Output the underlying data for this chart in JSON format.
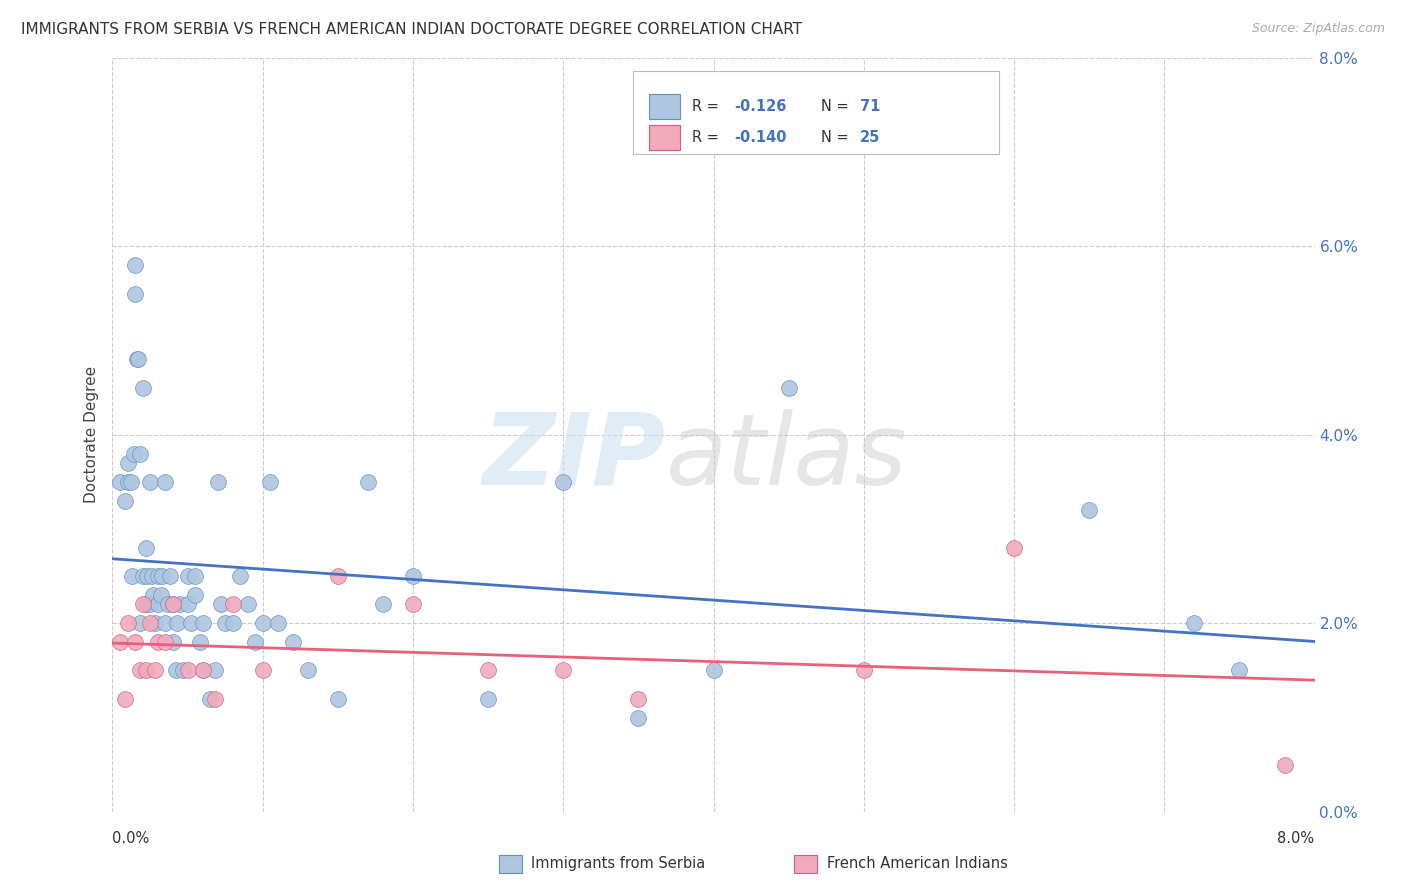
{
  "title": "IMMIGRANTS FROM SERBIA VS FRENCH AMERICAN INDIAN DOCTORATE DEGREE CORRELATION CHART",
  "source": "Source: ZipAtlas.com",
  "ylabel": "Doctorate Degree",
  "ytick_vals": [
    0.0,
    2.0,
    4.0,
    6.0,
    8.0
  ],
  "ytick_labels": [
    "0.0%",
    "2.0%",
    "4.0%",
    "6.0%",
    "8.0%"
  ],
  "xlim": [
    0.0,
    8.0
  ],
  "ylim": [
    0.0,
    8.0
  ],
  "blue_R": -0.126,
  "blue_N": 71,
  "pink_R": -0.14,
  "pink_N": 25,
  "blue_scatter_color": "#aec6e0",
  "blue_edge_color": "#6090c0",
  "pink_scatter_color": "#f0aabb",
  "pink_edge_color": "#d06080",
  "blue_line_color": "#4472c4",
  "pink_line_color": "#e8607a",
  "grid_color": "#cccccc",
  "legend_label_blue": "Immigrants from Serbia",
  "legend_label_pink": "French American Indians",
  "blue_x": [
    0.05,
    0.08,
    0.1,
    0.1,
    0.12,
    0.13,
    0.14,
    0.15,
    0.15,
    0.16,
    0.17,
    0.18,
    0.18,
    0.2,
    0.2,
    0.22,
    0.22,
    0.23,
    0.25,
    0.25,
    0.26,
    0.27,
    0.28,
    0.3,
    0.3,
    0.32,
    0.33,
    0.35,
    0.35,
    0.37,
    0.38,
    0.4,
    0.4,
    0.42,
    0.43,
    0.45,
    0.47,
    0.5,
    0.5,
    0.52,
    0.55,
    0.55,
    0.58,
    0.6,
    0.6,
    0.65,
    0.68,
    0.7,
    0.72,
    0.75,
    0.8,
    0.85,
    0.9,
    0.95,
    1.0,
    1.05,
    1.1,
    1.2,
    1.3,
    1.5,
    1.7,
    1.8,
    2.0,
    2.5,
    3.0,
    3.5,
    4.0,
    4.5,
    6.5,
    7.2,
    7.5
  ],
  "blue_y": [
    3.5,
    3.3,
    3.5,
    3.7,
    3.5,
    2.5,
    3.8,
    5.8,
    5.5,
    4.8,
    4.8,
    3.8,
    2.0,
    4.5,
    2.5,
    2.8,
    2.2,
    2.5,
    3.5,
    2.2,
    2.5,
    2.3,
    2.0,
    2.5,
    2.2,
    2.3,
    2.5,
    3.5,
    2.0,
    2.2,
    2.5,
    2.2,
    1.8,
    1.5,
    2.0,
    2.2,
    1.5,
    2.2,
    2.5,
    2.0,
    2.5,
    2.3,
    1.8,
    2.0,
    1.5,
    1.2,
    1.5,
    3.5,
    2.2,
    2.0,
    2.0,
    2.5,
    2.2,
    1.8,
    2.0,
    3.5,
    2.0,
    1.8,
    1.5,
    1.2,
    3.5,
    2.2,
    2.5,
    1.2,
    3.5,
    1.0,
    1.5,
    4.5,
    3.2,
    2.0,
    1.5
  ],
  "pink_x": [
    0.05,
    0.08,
    0.1,
    0.15,
    0.18,
    0.2,
    0.22,
    0.25,
    0.28,
    0.3,
    0.35,
    0.4,
    0.5,
    0.6,
    0.68,
    0.8,
    1.0,
    1.5,
    2.0,
    2.5,
    3.0,
    3.5,
    5.0,
    6.0,
    7.8
  ],
  "pink_y": [
    1.8,
    1.2,
    2.0,
    1.8,
    1.5,
    2.2,
    1.5,
    2.0,
    1.5,
    1.8,
    1.8,
    2.2,
    1.5,
    1.5,
    1.2,
    2.2,
    1.5,
    2.5,
    2.2,
    1.5,
    1.5,
    1.2,
    1.5,
    2.8,
    0.5
  ]
}
